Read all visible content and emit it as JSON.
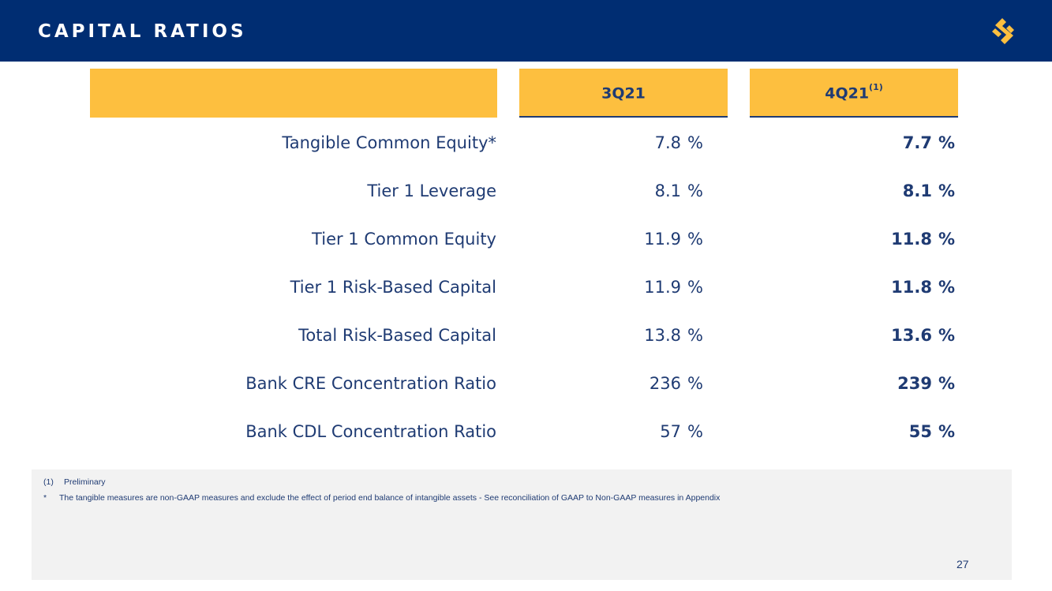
{
  "header": {
    "title": "CAPITAL RATIOS",
    "logo_icon": "stellar-s-logo-icon",
    "colors": {
      "background": "#002d72",
      "accent": "#fdbf3f",
      "text": "#1f3b73"
    }
  },
  "table": {
    "columns": [
      {
        "label": "3Q21",
        "sup": ""
      },
      {
        "label": "4Q21",
        "sup": "(1)"
      }
    ],
    "rows": [
      {
        "label": "Tangible Common Equity*",
        "v1": "7.8",
        "v2": "7.7",
        "unit": "%"
      },
      {
        "label": "Tier 1 Leverage",
        "v1": "8.1",
        "v2": "8.1",
        "unit": "%"
      },
      {
        "label": "Tier 1 Common Equity",
        "v1": "11.9",
        "v2": "11.8",
        "unit": "%"
      },
      {
        "label": "Tier 1 Risk-Based Capital",
        "v1": "11.9",
        "v2": "11.8",
        "unit": "%"
      },
      {
        "label": "Total Risk-Based Capital",
        "v1": "13.8",
        "v2": "13.6",
        "unit": "%"
      },
      {
        "label": "Bank CRE Concentration Ratio",
        "v1": "236",
        "v2": "239",
        "unit": "%"
      },
      {
        "label": "Bank CDL Concentration Ratio",
        "v1": "57",
        "v2": "55",
        "unit": "%"
      }
    ]
  },
  "footnotes": [
    {
      "mark": "(1)",
      "text": "Preliminary"
    },
    {
      "mark": "*",
      "text": "The tangible measures are non-GAAP measures and exclude the effect of period end balance of intangible assets - See reconciliation of GAAP to Non-GAAP measures in Appendix"
    }
  ],
  "page_number": "27"
}
